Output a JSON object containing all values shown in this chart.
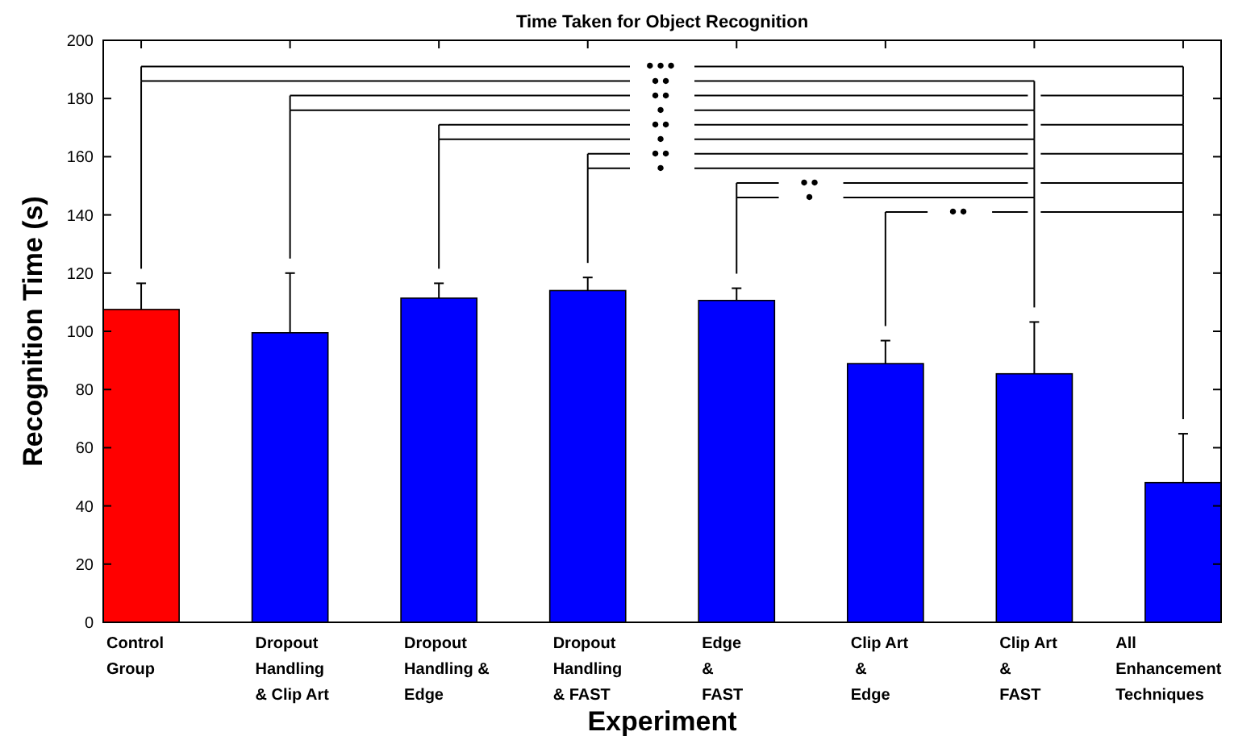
{
  "chart_data": {
    "type": "bar",
    "title": "Time Taken for Object Recognition",
    "xlabel": "Experiment",
    "ylabel": "Recognition Time (s)",
    "categories": [
      "Control\nGroup",
      "Dropout\nHandling\n& Clip Art",
      "Dropout\nHandling &\nEdge",
      "Dropout\nHandling\n& FAST",
      "Edge\n&\nFAST",
      "Clip Art\n &\nEdge",
      "Clip Art\n&\nFAST",
      "All\nEnhancement\nTechniques"
    ],
    "values": [
      107.5,
      99.5,
      111.4,
      114,
      110.6,
      88.9,
      85.4,
      48
    ],
    "errors": [
      [
        107.5,
        116.5
      ],
      [
        99.5,
        120
      ],
      [
        111.4,
        116.5
      ],
      [
        114,
        118.5
      ],
      [
        110.6,
        114.8
      ],
      [
        88.9,
        96.8
      ],
      [
        85.4,
        103.2
      ],
      [
        48,
        64.8
      ]
    ],
    "colors": [
      "#ff0000",
      "#0000ff",
      "#0000ff",
      "#0000ff",
      "#0000ff",
      "#0000ff",
      "#0000ff",
      "#0000ff"
    ],
    "ylim": [
      0,
      200
    ],
    "yticks": [
      0,
      20,
      40,
      60,
      80,
      100,
      120,
      140,
      160,
      180,
      200
    ],
    "grid": false,
    "annotations": [
      "•••",
      "••",
      "••",
      "•",
      "••",
      "•",
      "••",
      "•",
      "••",
      "•",
      "••"
    ]
  }
}
